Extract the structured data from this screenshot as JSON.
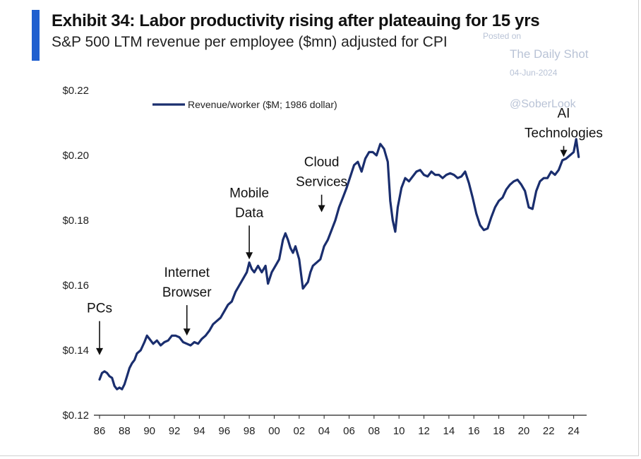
{
  "header": {
    "title": "Exhibit 34: Labor productivity rising after plateauing for 15 yrs",
    "subtitle": "S&P 500 LTM revenue per employee ($mn) adjusted for CPI"
  },
  "watermark": {
    "posted": "Posted on",
    "name": "The Daily Shot",
    "date": "04-Jun-2024",
    "handle": "@SoberLook"
  },
  "colors": {
    "accent": "#1f5fcf",
    "series": "#1a2e6e"
  },
  "chart_data": {
    "type": "line",
    "title": "Exhibit 34: Labor productivity rising after plateauing for 15 yrs",
    "subtitle": "S&P 500 LTM revenue per employee ($mn) adjusted for CPI",
    "xlabel": "",
    "ylabel": "",
    "xlim": [
      1986,
      2024.7
    ],
    "ylim": [
      0.12,
      0.22
    ],
    "yticks": [
      0.12,
      0.14,
      0.16,
      0.18,
      0.2,
      0.22
    ],
    "ytick_labels": [
      "$0.12",
      "$0.14",
      "$0.16",
      "$0.18",
      "$0.20",
      "$0.22"
    ],
    "xticks": [
      1986,
      1988,
      1990,
      1992,
      1994,
      1996,
      1998,
      2000,
      2002,
      2004,
      2006,
      2008,
      2010,
      2012,
      2014,
      2016,
      2018,
      2020,
      2022,
      2024
    ],
    "xtick_labels": [
      "86",
      "88",
      "90",
      "92",
      "94",
      "96",
      "98",
      "00",
      "02",
      "04",
      "06",
      "08",
      "10",
      "12",
      "14",
      "16",
      "18",
      "20",
      "22",
      "24"
    ],
    "grid": false,
    "legend": {
      "position": "top-left",
      "entries": [
        "Revenue/worker ($M; 1986 dollar)"
      ]
    },
    "series": [
      {
        "name": "Revenue/worker ($M; 1986 dollar)",
        "x": [
          1986.0,
          1986.2,
          1986.4,
          1986.6,
          1986.8,
          1987.0,
          1987.2,
          1987.4,
          1987.6,
          1987.8,
          1988.0,
          1988.2,
          1988.4,
          1988.6,
          1988.8,
          1989.0,
          1989.3,
          1989.6,
          1989.8,
          1990.0,
          1990.3,
          1990.6,
          1990.9,
          1991.2,
          1991.5,
          1991.8,
          1992.1,
          1992.4,
          1992.7,
          1993.0,
          1993.3,
          1993.6,
          1993.9,
          1994.2,
          1994.5,
          1994.8,
          1995.1,
          1995.4,
          1995.7,
          1996.0,
          1996.3,
          1996.6,
          1996.9,
          1997.2,
          1997.5,
          1997.8,
          1998.0,
          1998.2,
          1998.4,
          1998.7,
          1999.0,
          1999.3,
          1999.5,
          1999.8,
          2000.1,
          2000.4,
          2000.7,
          2000.9,
          2001.1,
          2001.3,
          2001.5,
          2001.7,
          2002.0,
          2002.3,
          2002.5,
          2002.7,
          2002.9,
          2003.1,
          2003.4,
          2003.7,
          2004.0,
          2004.3,
          2004.6,
          2004.9,
          2005.2,
          2005.5,
          2005.8,
          2006.1,
          2006.4,
          2006.7,
          2007.0,
          2007.3,
          2007.6,
          2007.9,
          2008.2,
          2008.5,
          2008.8,
          2009.1,
          2009.3,
          2009.5,
          2009.7,
          2009.9,
          2010.2,
          2010.5,
          2010.8,
          2011.1,
          2011.4,
          2011.7,
          2012.0,
          2012.3,
          2012.6,
          2012.9,
          2013.2,
          2013.5,
          2013.8,
          2014.1,
          2014.4,
          2014.7,
          2015.0,
          2015.3,
          2015.6,
          2015.9,
          2016.2,
          2016.5,
          2016.8,
          2017.1,
          2017.4,
          2017.7,
          2018.0,
          2018.3,
          2018.6,
          2018.9,
          2019.2,
          2019.5,
          2019.8,
          2020.1,
          2020.4,
          2020.7,
          2021.0,
          2021.3,
          2021.6,
          2021.9,
          2022.2,
          2022.5,
          2022.8,
          2023.1,
          2023.4,
          2023.7,
          2024.0,
          2024.2,
          2024.4
        ],
        "values": [
          0.131,
          0.133,
          0.1335,
          0.133,
          0.132,
          0.1315,
          0.129,
          0.128,
          0.1285,
          0.128,
          0.1295,
          0.132,
          0.1345,
          0.136,
          0.137,
          0.139,
          0.14,
          0.1425,
          0.1445,
          0.1435,
          0.142,
          0.143,
          0.1415,
          0.1425,
          0.143,
          0.1445,
          0.1445,
          0.144,
          0.1425,
          0.142,
          0.1415,
          0.1425,
          0.142,
          0.1435,
          0.1445,
          0.146,
          0.148,
          0.149,
          0.15,
          0.152,
          0.154,
          0.155,
          0.158,
          0.16,
          0.162,
          0.164,
          0.167,
          0.165,
          0.164,
          0.166,
          0.164,
          0.166,
          0.1605,
          0.164,
          0.166,
          0.168,
          0.174,
          0.176,
          0.174,
          0.1715,
          0.17,
          0.172,
          0.168,
          0.159,
          0.16,
          0.161,
          0.164,
          0.166,
          0.167,
          0.168,
          0.172,
          0.174,
          0.177,
          0.18,
          0.184,
          0.187,
          0.19,
          0.1935,
          0.197,
          0.198,
          0.195,
          0.199,
          0.201,
          0.201,
          0.2,
          0.2035,
          0.202,
          0.198,
          0.186,
          0.18,
          0.1765,
          0.184,
          0.19,
          0.193,
          0.192,
          0.1935,
          0.195,
          0.1955,
          0.194,
          0.1935,
          0.195,
          0.194,
          0.194,
          0.193,
          0.194,
          0.1945,
          0.194,
          0.193,
          0.1935,
          0.195,
          0.1915,
          0.187,
          0.182,
          0.1785,
          0.177,
          0.1775,
          0.181,
          0.184,
          0.186,
          0.187,
          0.1895,
          0.191,
          0.192,
          0.1925,
          0.191,
          0.189,
          0.184,
          0.1835,
          0.189,
          0.192,
          0.193,
          0.193,
          0.195,
          0.194,
          0.1955,
          0.1985,
          0.199,
          0.2,
          0.201,
          0.205,
          0.1995
        ]
      }
    ],
    "annotations": [
      {
        "lines": [
          "PCs"
        ],
        "arrow_x": 1986.0,
        "arrow_y": 0.1385,
        "label_top": 0.1555
      },
      {
        "lines": [
          "Internet",
          "Browser"
        ],
        "arrow_x": 1993.0,
        "arrow_y": 0.1445,
        "label_top": 0.1665
      },
      {
        "lines": [
          "Mobile",
          "Data"
        ],
        "arrow_x": 1998.0,
        "arrow_y": 0.168,
        "label_top": 0.191
      },
      {
        "lines": [
          "Cloud",
          "Services"
        ],
        "arrow_x": 2003.8,
        "arrow_y": 0.1825,
        "label_top": 0.2005
      },
      {
        "lines": [
          "AI",
          "Technologies"
        ],
        "arrow_x": 2023.2,
        "arrow_y": 0.1995,
        "label_top": 0.2155
      }
    ]
  }
}
